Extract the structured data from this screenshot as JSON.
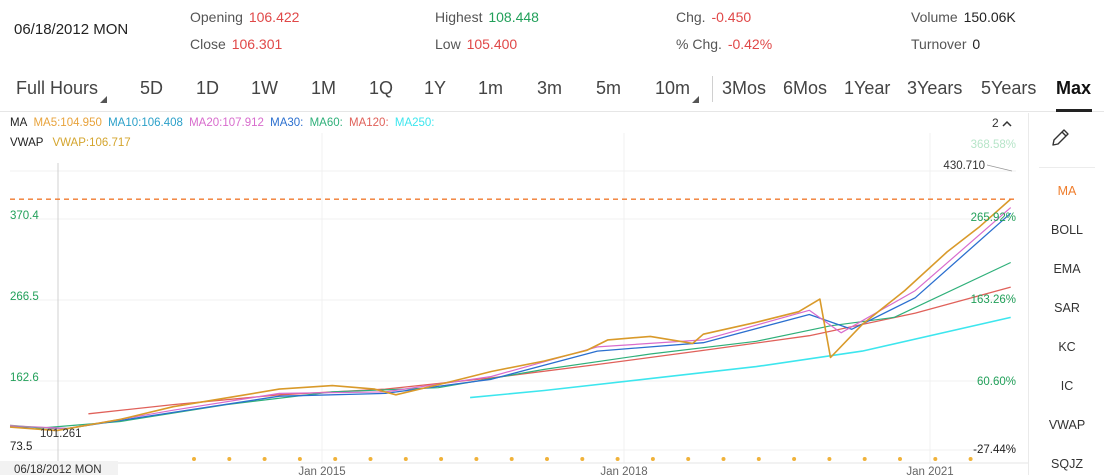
{
  "header": {
    "date": "06/18/2012 MON",
    "opening_label": "Opening",
    "opening_value": "106.422",
    "close_label": "Close",
    "close_value": "106.301",
    "highest_label": "Highest",
    "highest_value": "108.448",
    "low_label": "Low",
    "low_value": "105.400",
    "chg_label": "Chg.",
    "chg_value": "-0.450",
    "pct_chg_label": "% Chg.",
    "pct_chg_value": "-0.42%",
    "volume_label": "Volume",
    "volume_value": "150.06K",
    "turnover_label": "Turnover",
    "turnover_value": "0"
  },
  "tabs": [
    {
      "label": "Full Hours",
      "dropdown": true
    },
    {
      "label": "5D"
    },
    {
      "label": "1D"
    },
    {
      "label": "1W"
    },
    {
      "label": "1M"
    },
    {
      "label": "1Q"
    },
    {
      "label": "1Y"
    },
    {
      "label": "1m"
    },
    {
      "label": "3m"
    },
    {
      "label": "5m"
    },
    {
      "label": "10m",
      "dropdown": true
    },
    {
      "label": "3Mos"
    },
    {
      "label": "6Mos"
    },
    {
      "label": "1Year"
    },
    {
      "label": "3Years"
    },
    {
      "label": "5Years"
    },
    {
      "label": "Max",
      "active": true
    }
  ],
  "legend": {
    "ma_label": "MA",
    "ma5": "MA5:104.950",
    "ma10": "MA10:106.408",
    "ma20": "MA20:107.912",
    "ma30": "MA30:",
    "ma60": "MA60:",
    "ma120": "MA120:",
    "ma250": "MA250:",
    "vwap_label": "VWAP",
    "vwap": "VWAP:106.717",
    "collapse_label": "2"
  },
  "colors": {
    "ma5": "#e8a33c",
    "ma10": "#2ba0c9",
    "ma20": "#d86ccd",
    "ma30": "#2b6fcf",
    "ma60": "#2fb07a",
    "ma120": "#e0615a",
    "ma250": "#3de6ee",
    "vwap": "#d4a52e",
    "price": "#d99a2a",
    "dashed": "#f07a2e",
    "axis_green": "#22a05a",
    "accent": "#ef7d2c"
  },
  "sidebar": {
    "items": [
      "MA",
      "BOLL",
      "EMA",
      "SAR",
      "KC",
      "IC",
      "VWAP",
      "SQJZ"
    ],
    "active": "MA"
  },
  "chart_data": {
    "type": "line",
    "y_ticks": [
      "370.4",
      "266.5",
      "162.6",
      "73.5"
    ],
    "pct_ticks": [
      "368.58%",
      "265.92%",
      "163.26%",
      "60.60%",
      "-27.44%"
    ],
    "x_ticks": [
      "Jan 2015",
      "Jan 2018",
      "Jan 2021"
    ],
    "start_label": "06/18/2012 MON",
    "max_label": "430.710",
    "min_label": "101.261",
    "ylim": [
      73.5,
      470
    ],
    "grid": true,
    "series": [
      {
        "key": "price",
        "x": [
          2012.46,
          2012.9,
          2013.5,
          2014.0,
          2014.6,
          2015.0,
          2015.5,
          2015.9,
          2016.1,
          2016.6,
          2017.0,
          2017.5,
          2017.9,
          2018.1,
          2018.5,
          2018.9,
          2019.0,
          2019.5,
          2019.9,
          2020.1,
          2020.2,
          2020.5,
          2020.9,
          2021.3,
          2021.6,
          2021.9
        ],
        "values": [
          106,
          101,
          117,
          135,
          150,
          160,
          165,
          160,
          152,
          170,
          185,
          200,
          215,
          230,
          235,
          225,
          238,
          255,
          270,
          288,
          205,
          252,
          300,
          355,
          390,
          430
        ]
      },
      {
        "key": "ma20",
        "x": [
          2012.46,
          2013.0,
          2014.0,
          2015.0,
          2016.0,
          2017.0,
          2018.0,
          2019.0,
          2020.0,
          2020.3,
          2021.0,
          2021.9
        ],
        "values": [
          108,
          104,
          130,
          154,
          156,
          178,
          220,
          230,
          272,
          240,
          300,
          418
        ]
      },
      {
        "key": "ma30",
        "x": [
          2012.46,
          2013.0,
          2014.0,
          2015.0,
          2016.0,
          2017.0,
          2018.0,
          2019.0,
          2020.0,
          2020.4,
          2021.0,
          2021.9
        ],
        "values": [
          107,
          104,
          127,
          150,
          154,
          174,
          214,
          226,
          266,
          245,
          290,
          410
        ]
      },
      {
        "key": "ma60",
        "x": [
          2012.7,
          2013.5,
          2014.5,
          2015.5,
          2016.5,
          2017.5,
          2018.5,
          2019.5,
          2020.2,
          2020.8,
          2021.9
        ],
        "values": [
          104,
          114,
          138,
          156,
          162,
          188,
          210,
          228,
          250,
          262,
          340
        ]
      },
      {
        "key": "ma120",
        "x": [
          2013.2,
          2014.0,
          2015.0,
          2016.0,
          2017.0,
          2018.0,
          2019.0,
          2020.0,
          2021.0,
          2021.9
        ],
        "values": [
          125,
          138,
          152,
          160,
          176,
          195,
          215,
          236,
          268,
          305
        ]
      },
      {
        "key": "ma250",
        "x": [
          2016.8,
          2017.5,
          2018.5,
          2019.5,
          2020.5,
          2021.9
        ],
        "values": [
          148,
          158,
          175,
          192,
          214,
          262
        ]
      }
    ]
  }
}
